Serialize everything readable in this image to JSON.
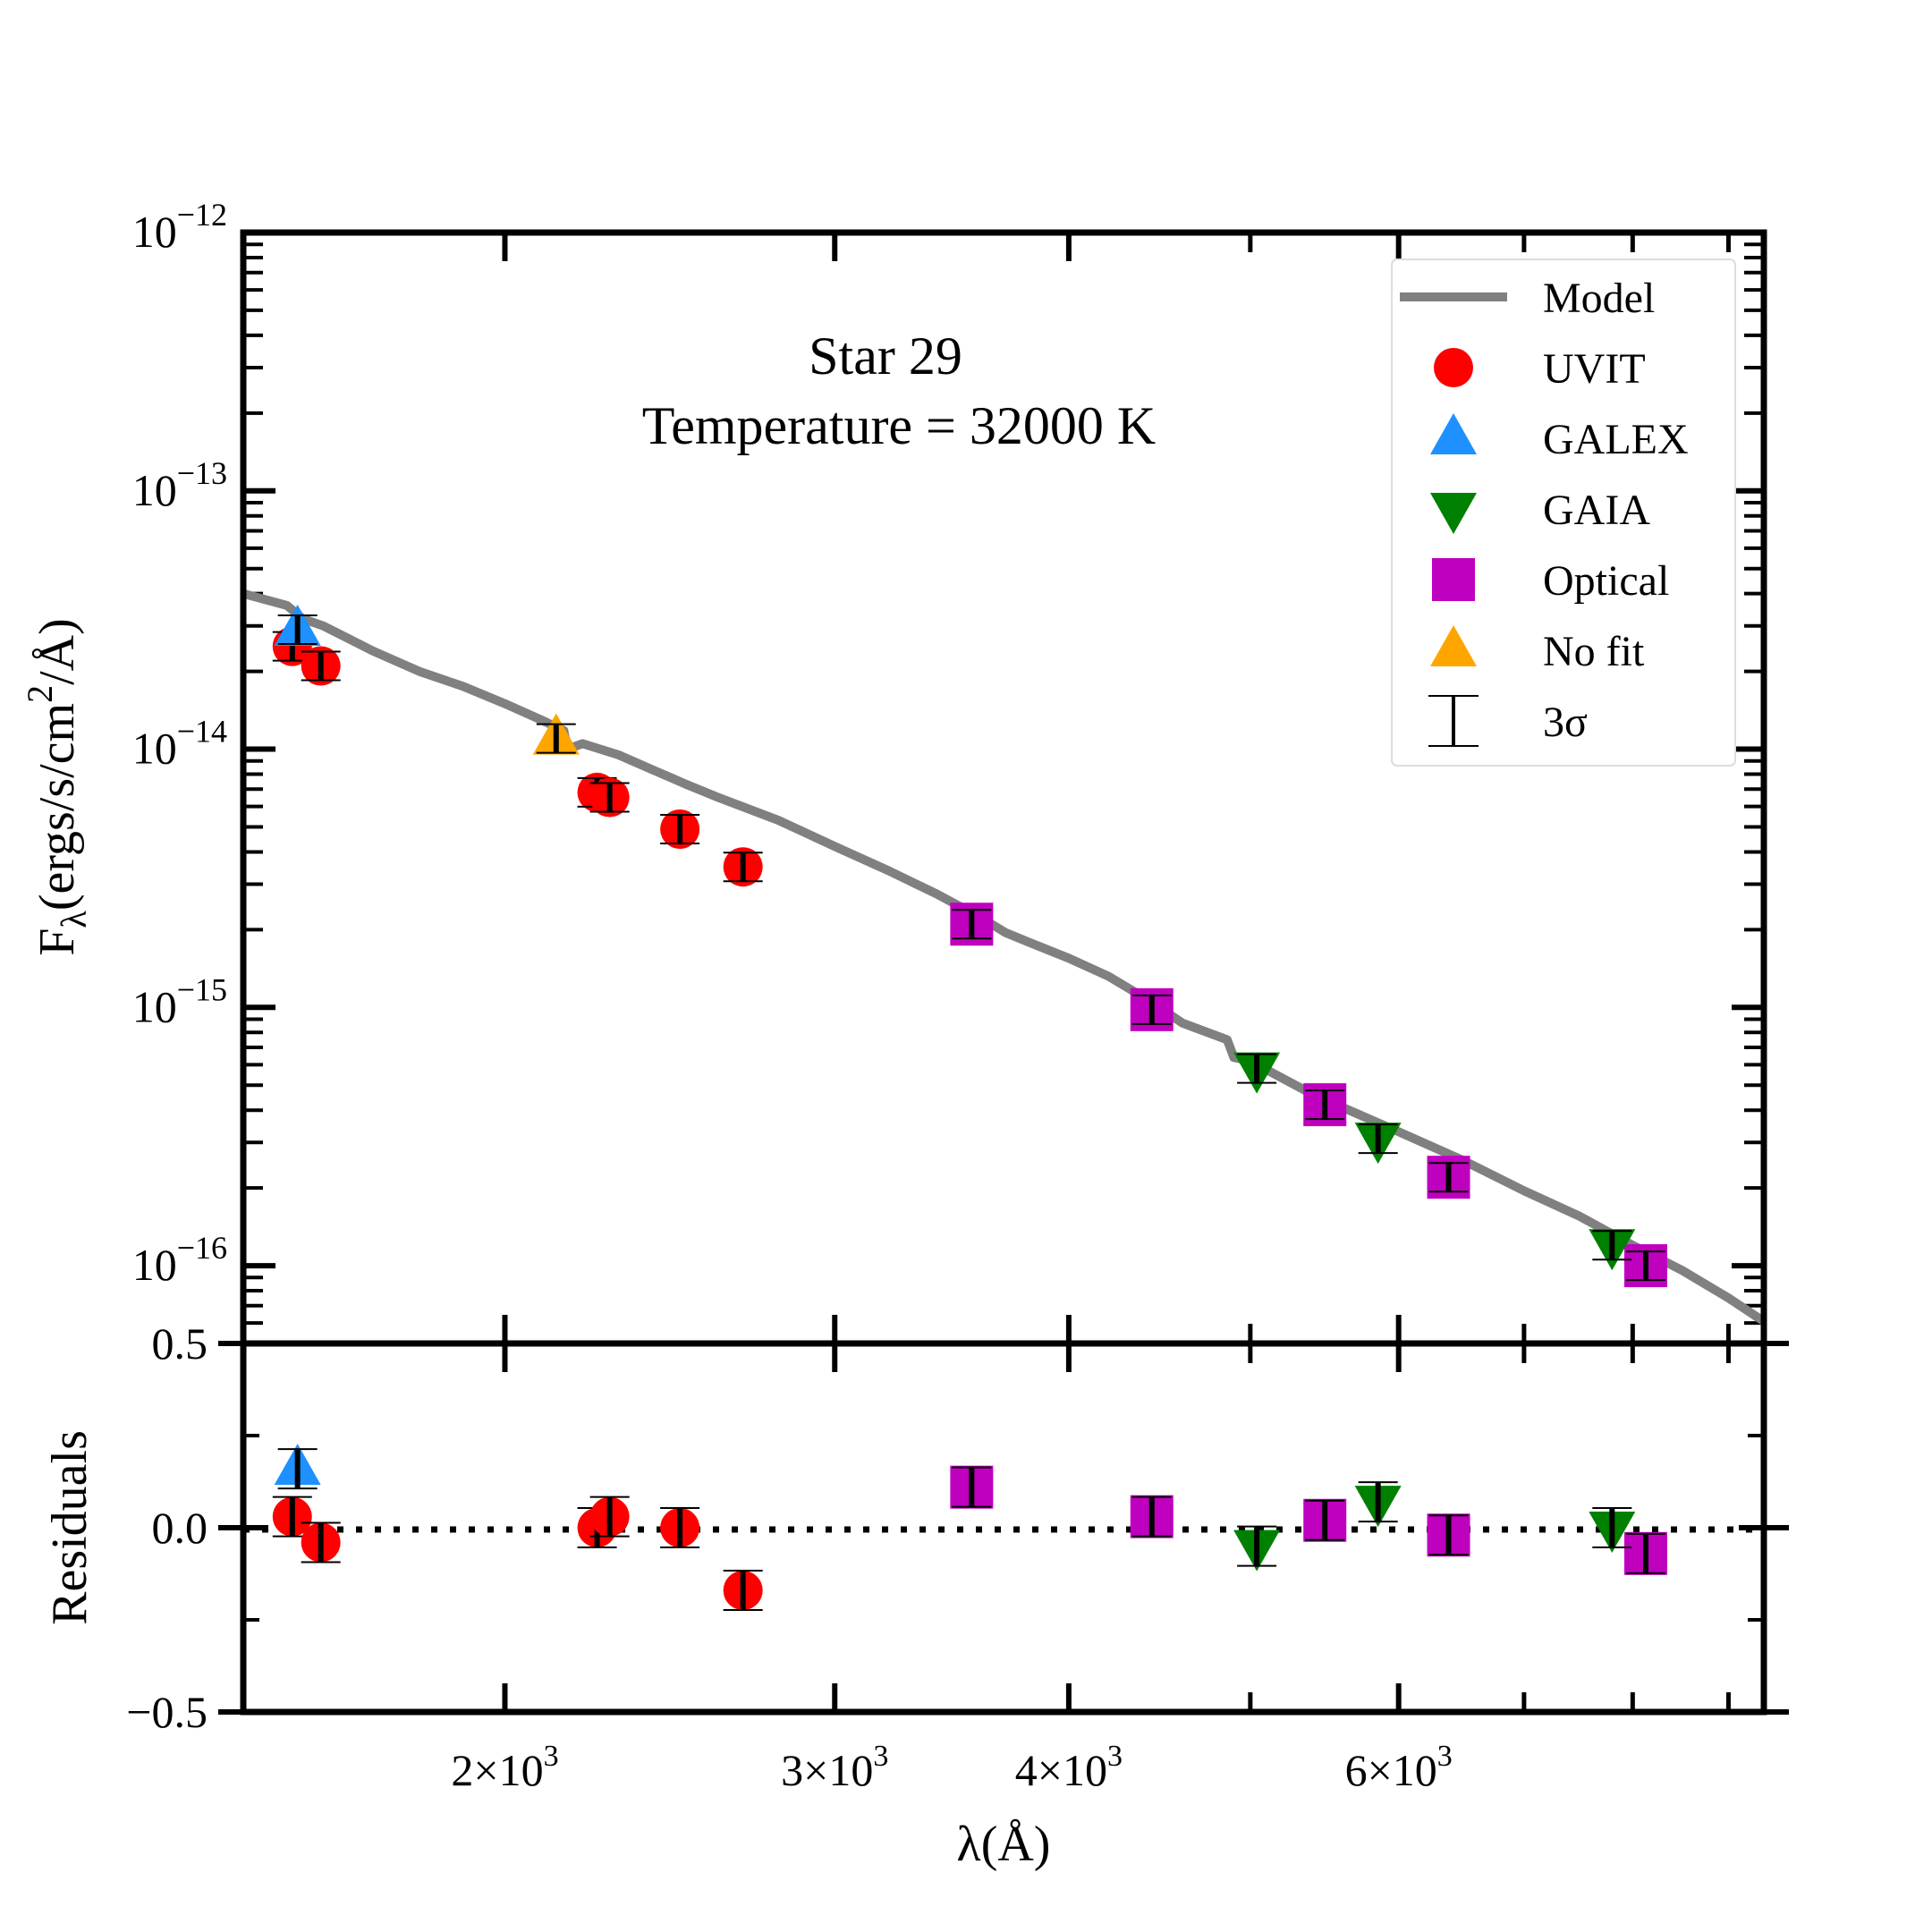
{
  "chart_data": [
    {
      "type": "scatter",
      "panel": "sed",
      "x_scale": "log",
      "y_scale": "log",
      "xlim": [
        1450,
        9400
      ],
      "ylim": [
        5e-17,
        1e-12
      ],
      "ylabel": "Fλ(ergs/s/cm²/Å)",
      "ylabel_parts": {
        "base": "F",
        "sub": "λ",
        "pre": "(ergs/s/cm",
        "sup": "2",
        "post": "/Å)"
      },
      "annotation": {
        "line1": "Star 29",
        "line2": "Temperature = 32000 K"
      },
      "y_ticks": [
        {
          "value": 1e-12,
          "base": "10",
          "exp": "−12"
        },
        {
          "value": 1e-13,
          "base": "10",
          "exp": "−13"
        },
        {
          "value": 1e-14,
          "base": "10",
          "exp": "−14"
        },
        {
          "value": 1e-15,
          "base": "10",
          "exp": "−15"
        },
        {
          "value": 1e-16,
          "base": "10",
          "exp": "−16"
        }
      ],
      "legend": {
        "position": "upper right",
        "entries": [
          {
            "label": "Model",
            "marker": "line",
            "color": "#808080"
          },
          {
            "label": "UVIT",
            "marker": "circle",
            "color": "#ff0000"
          },
          {
            "label": "GALEX",
            "marker": "triangle-up",
            "color": "#1e90ff"
          },
          {
            "label": "GAIA",
            "marker": "triangle-down",
            "color": "#008000"
          },
          {
            "label": "Optical",
            "marker": "square",
            "color": "#bf00bf"
          },
          {
            "label": "No fit",
            "marker": "triangle-up",
            "color": "#ffa500"
          },
          {
            "label": "3σ",
            "marker": "errorbar",
            "color": "#000000"
          }
        ]
      },
      "model": {
        "name": "Model",
        "color": "#808080",
        "x": [
          1450,
          1530,
          1560,
          1600,
          1700,
          1800,
          1900,
          2000,
          2100,
          2150,
          2160,
          2200,
          2300,
          2400,
          2500,
          2600,
          2800,
          3000,
          3200,
          3400,
          3600,
          3700,
          3800,
          4000,
          4200,
          4400,
          4600,
          4860,
          4900,
          5000,
          5400,
          6000,
          6500,
          7000,
          7500,
          8000,
          8500,
          9000,
          9300,
          9400
        ],
        "y": [
          4e-14,
          3.6e-14,
          3.2e-14,
          3e-14,
          2.4e-14,
          2e-14,
          1.75e-14,
          1.5e-14,
          1.28e-14,
          1.18e-14,
          1e-14,
          1.05e-14,
          9.5e-15,
          8.3e-15,
          7.3e-15,
          6.5e-15,
          5.3e-15,
          4.2e-15,
          3.4e-15,
          2.75e-15,
          2.2e-15,
          1.95e-15,
          1.8e-15,
          1.55e-15,
          1.32e-15,
          1.08e-15,
          8.7e-16,
          7.5e-16,
          6.4e-16,
          6.2e-16,
          4.6e-16,
          3.3e-16,
          2.55e-16,
          1.95e-16,
          1.55e-16,
          1.2e-16,
          9.6e-17,
          7.5e-17,
          6.4e-17,
          6.1e-17
        ]
      },
      "series": [
        {
          "name": "UVIT",
          "marker": "circle",
          "color": "#ff0000",
          "points": [
            {
              "x": 1540,
              "y": 2.5e-14
            },
            {
              "x": 1595,
              "y": 2.1e-14
            },
            {
              "x": 2240,
              "y": 6.8e-15
            },
            {
              "x": 2275,
              "y": 6.5e-15
            },
            {
              "x": 2480,
              "y": 4.9e-15
            },
            {
              "x": 2680,
              "y": 3.5e-15
            }
          ]
        },
        {
          "name": "GALEX",
          "marker": "triangle-up",
          "color": "#1e90ff",
          "points": [
            {
              "x": 1550,
              "y": 2.9e-14
            }
          ]
        },
        {
          "name": "No fit",
          "marker": "triangle-up",
          "color": "#ffa500",
          "points": [
            {
              "x": 2130,
              "y": 1.1e-14
            }
          ]
        },
        {
          "name": "Optical",
          "marker": "square",
          "color": "#bf00bf",
          "points": [
            {
              "x": 3550,
              "y": 2.1e-15
            },
            {
              "x": 4430,
              "y": 9.8e-16
            },
            {
              "x": 5480,
              "y": 4.2e-16
            },
            {
              "x": 6380,
              "y": 2.2e-16
            },
            {
              "x": 8130,
              "y": 1e-16
            }
          ]
        },
        {
          "name": "GAIA",
          "marker": "triangle-down",
          "color": "#008000",
          "points": [
            {
              "x": 5040,
              "y": 5.8e-16
            },
            {
              "x": 5850,
              "y": 3.1e-16
            },
            {
              "x": 7800,
              "y": 1.2e-16
            }
          ]
        }
      ]
    },
    {
      "type": "scatter",
      "panel": "residuals",
      "x_scale": "log",
      "xlim": [
        1450,
        9400
      ],
      "ylim": [
        -0.5,
        0.5
      ],
      "xlabel": "λ(Å)",
      "ylabel": "Residuals",
      "x_ticks": [
        {
          "value": 2000,
          "mant": "2",
          "times": "×",
          "base": "10",
          "exp": "3"
        },
        {
          "value": 3000,
          "mant": "3",
          "times": "×",
          "base": "10",
          "exp": "3"
        },
        {
          "value": 4000,
          "mant": "4",
          "times": "×",
          "base": "10",
          "exp": "3"
        },
        {
          "value": 6000,
          "mant": "6",
          "times": "×",
          "base": "10",
          "exp": "3"
        }
      ],
      "y_ticks": [
        {
          "value": 0.5,
          "label": "0.5"
        },
        {
          "value": 0.0,
          "label": "0.0"
        },
        {
          "value": -0.5,
          "label": "−0.5"
        }
      ],
      "zero_line": {
        "style": "dotted",
        "y": 0.0
      },
      "series": [
        {
          "name": "UVIT",
          "marker": "circle",
          "color": "#ff0000",
          "points": [
            {
              "x": 1540,
              "y": 0.03
            },
            {
              "x": 1595,
              "y": -0.04
            },
            {
              "x": 2240,
              "y": 0.0
            },
            {
              "x": 2275,
              "y": 0.03
            },
            {
              "x": 2480,
              "y": 0.0
            },
            {
              "x": 2680,
              "y": -0.17
            }
          ]
        },
        {
          "name": "GALEX",
          "marker": "triangle-up",
          "color": "#1e90ff",
          "points": [
            {
              "x": 1550,
              "y": 0.16
            }
          ]
        },
        {
          "name": "Optical",
          "marker": "square",
          "color": "#bf00bf",
          "points": [
            {
              "x": 3550,
              "y": 0.11
            },
            {
              "x": 4430,
              "y": 0.03
            },
            {
              "x": 5480,
              "y": 0.02
            },
            {
              "x": 6380,
              "y": -0.02
            },
            {
              "x": 8130,
              "y": -0.07
            }
          ]
        },
        {
          "name": "GAIA",
          "marker": "triangle-down",
          "color": "#008000",
          "points": [
            {
              "x": 5040,
              "y": -0.05
            },
            {
              "x": 5850,
              "y": 0.07
            },
            {
              "x": 7800,
              "y": 0.0
            }
          ]
        }
      ]
    }
  ]
}
